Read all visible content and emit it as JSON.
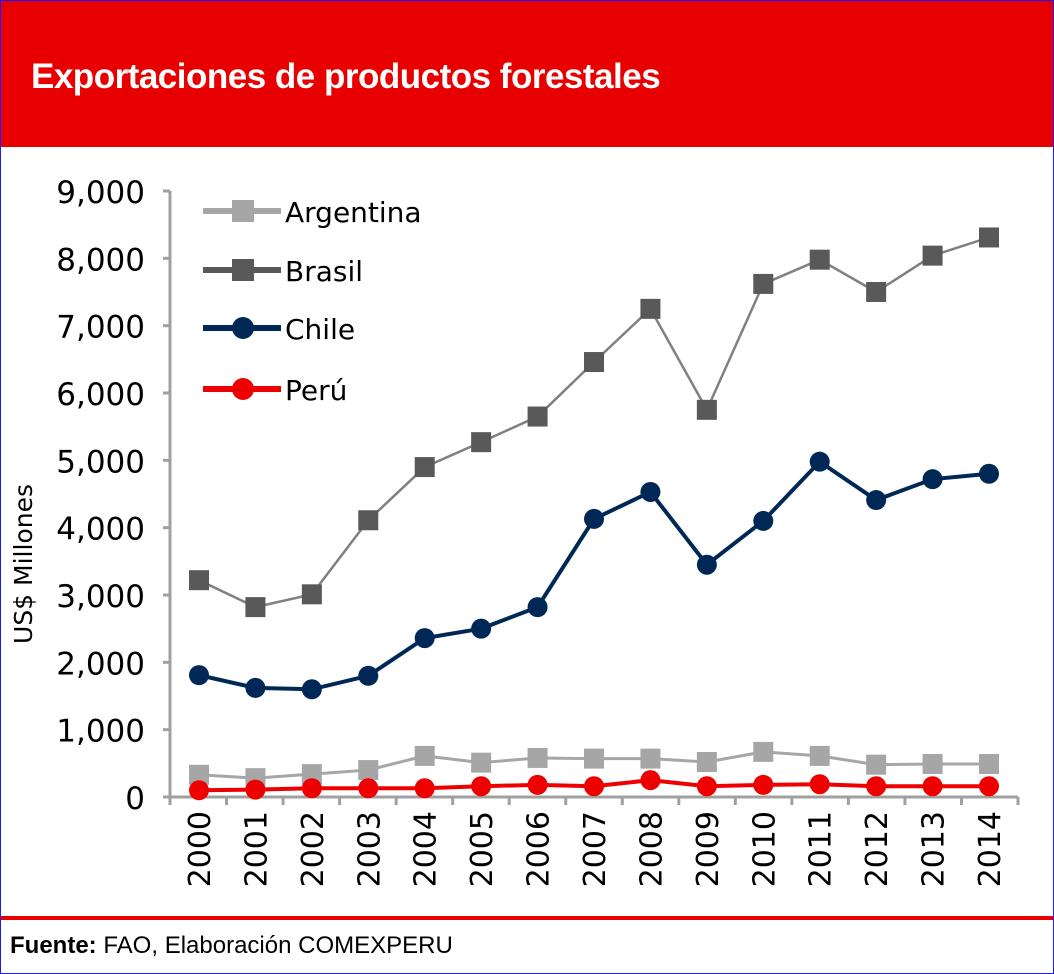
{
  "header": {
    "title": "Exportaciones de productos forestales"
  },
  "footer": {
    "source_label": "Fuente:",
    "source_text": " FAO, Elaboración COMEXPERU"
  },
  "colors": {
    "header_bg": "#e80000",
    "argentina": "#a6a6a6",
    "brasil": "#595959",
    "brasil_line": "#808080",
    "chile": "#002856",
    "peru": "#ee0000",
    "axis": "#a0a0a0"
  },
  "chart_data": {
    "type": "line",
    "title": "Exportaciones de productos forestales",
    "xlabel": "",
    "ylabel": "US$ Millones",
    "ylim": [
      0,
      9000
    ],
    "yticks": [
      0,
      1000,
      2000,
      3000,
      4000,
      5000,
      6000,
      7000,
      8000,
      9000
    ],
    "ytick_labels": [
      "0",
      "1,000",
      "2,000",
      "3,000",
      "4,000",
      "5,000",
      "6,000",
      "7,000",
      "8,000",
      "9,000"
    ],
    "grid": false,
    "legend_position": "top-left",
    "x": [
      "2000",
      "2001",
      "2002",
      "2003",
      "2004",
      "2005",
      "2006",
      "2007",
      "2008",
      "2009",
      "2010",
      "2011",
      "2012",
      "2013",
      "2014"
    ],
    "series": [
      {
        "name": "Argentina",
        "marker": "square",
        "values": [
          330,
          280,
          340,
          400,
          610,
          510,
          580,
          570,
          570,
          520,
          670,
          610,
          480,
          490,
          490
        ]
      },
      {
        "name": "Brasil",
        "marker": "square",
        "values": [
          3220,
          2820,
          3010,
          4110,
          4900,
          5270,
          5650,
          6460,
          7250,
          5750,
          7620,
          7980,
          7500,
          8040,
          8310
        ]
      },
      {
        "name": "Chile",
        "marker": "circle",
        "values": [
          1810,
          1620,
          1600,
          1800,
          2360,
          2500,
          2820,
          4130,
          4530,
          3450,
          4100,
          4980,
          4410,
          4720,
          4800
        ]
      },
      {
        "name": "Perú",
        "marker": "circle",
        "values": [
          100,
          110,
          130,
          130,
          130,
          160,
          180,
          160,
          250,
          160,
          180,
          190,
          160,
          160,
          160
        ]
      }
    ]
  }
}
